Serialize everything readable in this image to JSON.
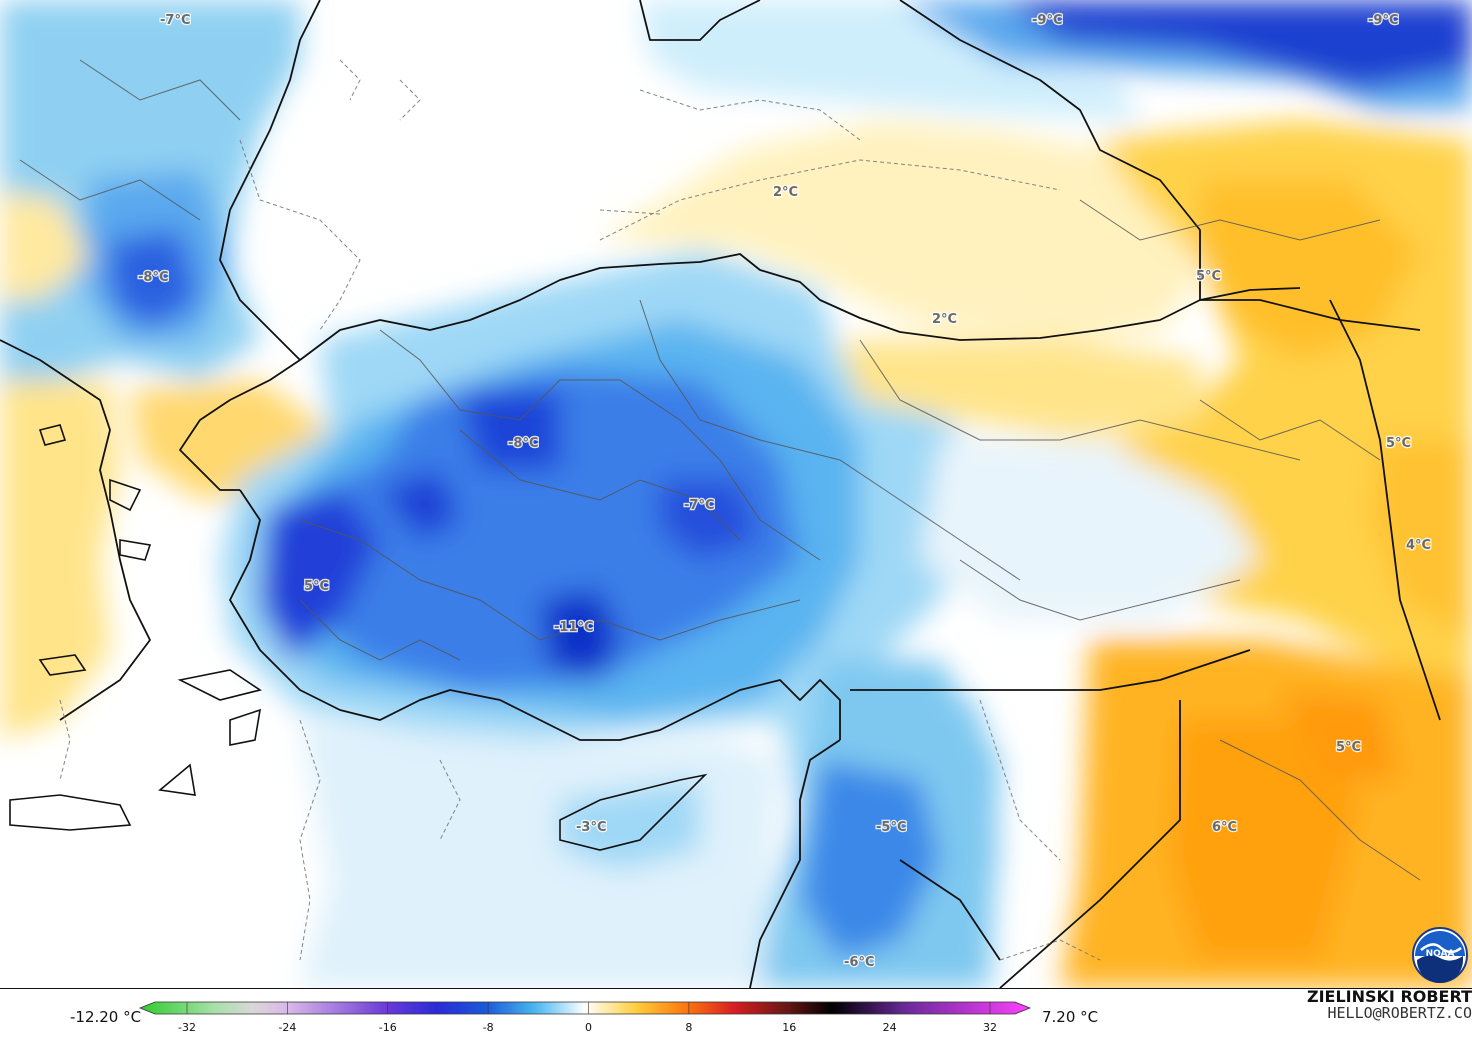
{
  "map": {
    "labels": [
      {
        "text": "-7°C"
      },
      {
        "text": "-9°C"
      },
      {
        "text": "-9°C"
      },
      {
        "text": "2°C"
      },
      {
        "text": "-8°C"
      },
      {
        "text": "5°C"
      },
      {
        "text": "2°C"
      },
      {
        "text": "5°C"
      },
      {
        "text": "-8°C"
      },
      {
        "text": "-7°C"
      },
      {
        "text": "4°C"
      },
      {
        "text": "5°C"
      },
      {
        "text": "-11°C"
      },
      {
        "text": "5°C"
      },
      {
        "text": "-5°C"
      },
      {
        "text": "6°C"
      },
      {
        "text": "-3°C"
      },
      {
        "text": "-6°C"
      }
    ],
    "colors": {
      "water": "#ffffff",
      "border": "#111111",
      "admin": "#555555",
      "iso": "#777777"
    }
  },
  "colorbar": {
    "min_label": "-12.20 °C",
    "max_label": "7.20 °C",
    "ticks": [
      "-32",
      "-24",
      "-16",
      "-8",
      "0",
      "8",
      "16",
      "24",
      "32"
    ],
    "range": [
      -32,
      32
    ],
    "stops": [
      {
        "v": -36,
        "c": "#2ecc2e"
      },
      {
        "v": -30,
        "c": "#a8e0a8"
      },
      {
        "v": -27,
        "c": "#d8d8d8"
      },
      {
        "v": -24,
        "c": "#d8b8e8"
      },
      {
        "v": -16,
        "c": "#6a3ad8"
      },
      {
        "v": -12,
        "c": "#2a2ad8"
      },
      {
        "v": -8,
        "c": "#1a5ad8"
      },
      {
        "v": -4,
        "c": "#4ab8ee"
      },
      {
        "v": 0,
        "c": "#ffffff"
      },
      {
        "v": 4,
        "c": "#ffd040"
      },
      {
        "v": 8,
        "c": "#ff7a10"
      },
      {
        "v": 12,
        "c": "#d82020"
      },
      {
        "v": 16,
        "c": "#701818"
      },
      {
        "v": 20,
        "c": "#000000"
      },
      {
        "v": 26,
        "c": "#6a2a9a"
      },
      {
        "v": 36,
        "c": "#ff40ff"
      }
    ]
  },
  "credit": {
    "name": "ZIELINSKI ROBERT",
    "email": "HELLO@ROBERTZ.CO"
  },
  "logo": {
    "text": "NOAA"
  }
}
